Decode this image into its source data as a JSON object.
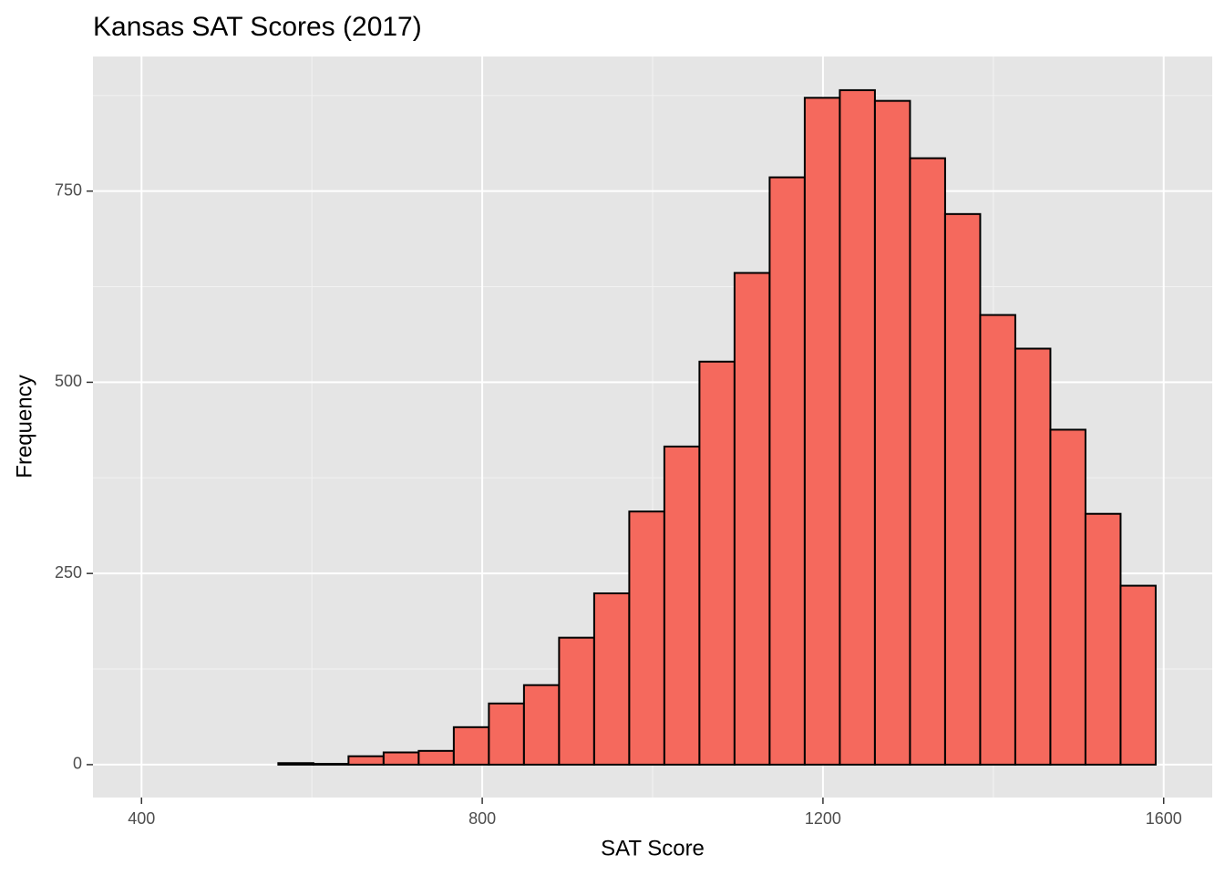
{
  "chart_data": {
    "type": "histogram",
    "title": "Kansas SAT Scores (2017)",
    "x_label": "SAT Score",
    "y_label": "Frequency",
    "bins": [
      437,
      478.2,
      519.4,
      560.6,
      601.8,
      643,
      684.2,
      725.4,
      766.6,
      807.8,
      849,
      890.2,
      931.4,
      972.6,
      1013.8,
      1055,
      1096.2,
      1137.4,
      1178.6,
      1219.8,
      1261,
      1302.2,
      1343.4,
      1384.6,
      1425.8,
      1467,
      1508.2,
      1549.4,
      1590.6
    ],
    "values": [
      0,
      0,
      0,
      2,
      1,
      11,
      16,
      18,
      49,
      80,
      104,
      166,
      224,
      331,
      416,
      527,
      643,
      768,
      872,
      882,
      868,
      793,
      720,
      588,
      544,
      438,
      328,
      234
    ],
    "color": "#f5695d",
    "edge_color": "#000000",
    "xlim": [
      343,
      1657
    ],
    "ylim": [
      -43,
      926
    ],
    "xticks": [
      400,
      800,
      1200,
      1600
    ],
    "yticks": [
      0,
      250,
      500,
      750
    ],
    "grid": true
  }
}
